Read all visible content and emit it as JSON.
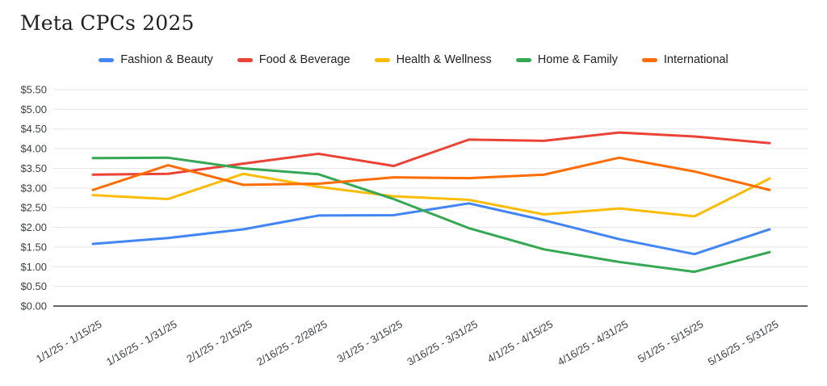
{
  "title": "Meta CPCs 2025",
  "chart_data": {
    "type": "line",
    "title": "Meta CPCs 2025",
    "categories": [
      "1/1/25 - 1/15/25",
      "1/16/25 - 1/31/25",
      "2/1/25 - 2/15/25",
      "2/16/25 - 2/28/25",
      "3/1/25 - 3/15/25",
      "3/16/25 - 3/31/25",
      "4/1/25 - 4/15/25",
      "4/16/25 - 4/31/25",
      "5/1/25 - 5/15/25",
      "5/16/25 - 5/31/25"
    ],
    "series": [
      {
        "name": "Fashion & Beauty",
        "color": "#4285F4",
        "values": [
          1.58,
          1.73,
          1.95,
          2.3,
          2.31,
          2.61,
          2.18,
          1.7,
          1.32,
          1.95
        ]
      },
      {
        "name": "Food & Beverage",
        "color": "#EA4335",
        "values": [
          3.34,
          3.36,
          3.62,
          3.87,
          3.56,
          4.23,
          4.2,
          4.41,
          4.31,
          4.14
        ]
      },
      {
        "name": "Health & Wellness",
        "color": "#FBBC04",
        "values": [
          2.82,
          2.72,
          3.36,
          3.03,
          2.79,
          2.7,
          2.33,
          2.48,
          2.28,
          3.24
        ]
      },
      {
        "name": "Home & Family",
        "color": "#34A853",
        "values": [
          3.76,
          3.77,
          3.5,
          3.35,
          2.72,
          1.98,
          1.44,
          1.12,
          0.87,
          1.37
        ]
      },
      {
        "name": "International",
        "color": "#FF6D01",
        "values": [
          2.95,
          3.58,
          3.08,
          3.11,
          3.27,
          3.25,
          3.34,
          3.77,
          3.42,
          2.95
        ]
      }
    ],
    "ylim": [
      0,
      5.5
    ],
    "y_tick_step": 0.5,
    "y_tick_labels": [
      "$0.00",
      "$0.50",
      "$1.00",
      "$1.50",
      "$2.00",
      "$2.50",
      "$3.00",
      "$3.50",
      "$4.00",
      "$4.50",
      "$5.00",
      "$5.50"
    ],
    "xlabel": "",
    "ylabel": "",
    "grid": true,
    "legend_position": "top",
    "colors": {
      "gridline": "#e6e6e6",
      "axis_line": "#666666",
      "tick_text": "#3c4043",
      "legend_text": "#202124",
      "title_text": "#202124",
      "background": "#ffffff"
    }
  }
}
